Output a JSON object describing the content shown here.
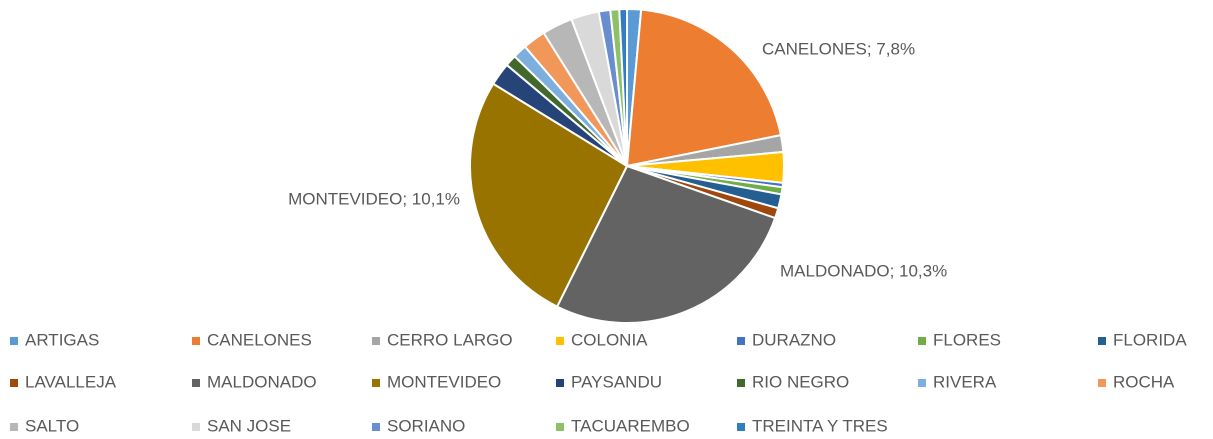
{
  "chart_data": {
    "type": "pie",
    "categories": [
      "ARTIGAS",
      "CANELONES",
      "CERRO LARGO",
      "COLONIA",
      "DURAZNO",
      "FLORES",
      "FLORIDA",
      "LAVALLEJA",
      "MALDONADO",
      "MONTEVIDEO",
      "PAYSANDU",
      "RIO NEGRO",
      "RIVERA",
      "ROCHA",
      "SALTO",
      "SAN JOSE",
      "SORIANO",
      "TACUAREMBO",
      "TREINTA Y TRES"
    ],
    "values": [
      0.55,
      7.8,
      0.66,
      1.2,
      0.17,
      0.28,
      0.55,
      0.4,
      10.3,
      10.1,
      0.9,
      0.45,
      0.55,
      0.9,
      1.2,
      1.1,
      0.45,
      0.35,
      0.3
    ],
    "value_labels": [
      null,
      "CANELONES; 7,8%",
      null,
      null,
      null,
      null,
      null,
      null,
      "MALDONADO; 10,3%",
      "MONTEVIDEO; 10,1%",
      null,
      null,
      null,
      null,
      null,
      null,
      null,
      null,
      null
    ],
    "colors": [
      "#5b9bd5",
      "#ed7d31",
      "#a5a5a5",
      "#ffc000",
      "#4472c4",
      "#70ad47",
      "#255e91",
      "#9e480e",
      "#636363",
      "#997300",
      "#264478",
      "#43682b",
      "#7cafdd",
      "#f1975a",
      "#b7b7b7",
      "#d9d9d9",
      "#698ed0",
      "#8cc168",
      "#327dc2"
    ],
    "legend": "bottom"
  }
}
